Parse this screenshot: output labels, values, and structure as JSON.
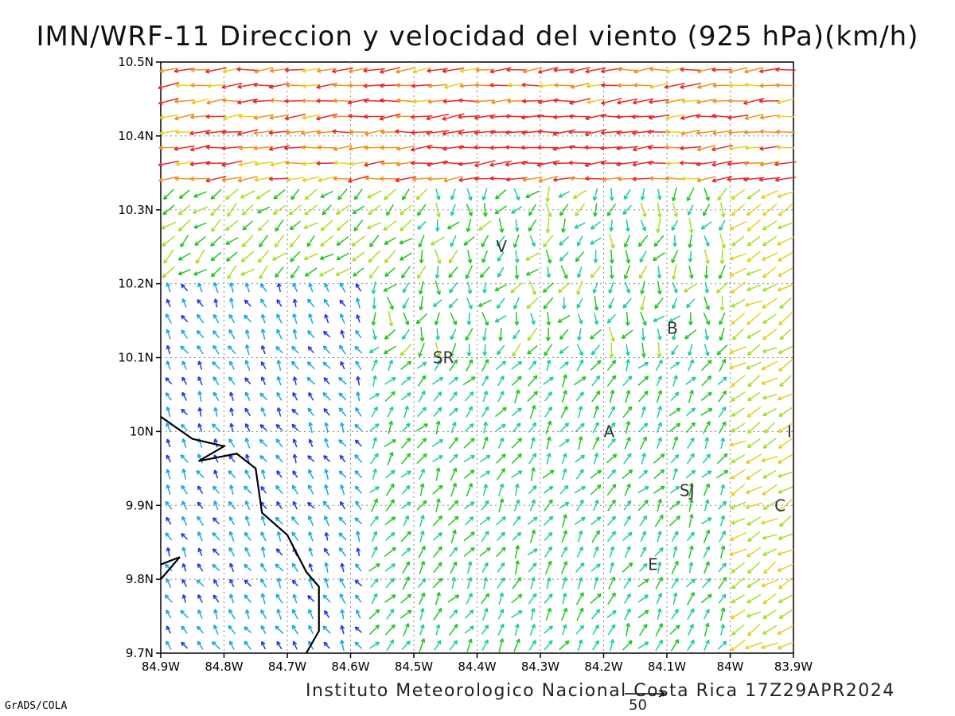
{
  "title": "IMN/WRF-11 Direccion y velocidad del viento (925 hPa)(km/h)",
  "credit": "Instituto Meteorologico Nacional Costa Rica 17Z29APR2024",
  "software": "GrADS/COLA",
  "reference_vector": {
    "label": "50",
    "speed_kmh": 50
  },
  "axes": {
    "lat_ticks": [
      "9.7N",
      "9.8N",
      "9.9N",
      "10N",
      "10.1N",
      "10.2N",
      "10.3N",
      "10.4N",
      "10.5N"
    ],
    "lon_ticks": [
      "84.9W",
      "84.8W",
      "84.7W",
      "84.6W",
      "84.5W",
      "84.4W",
      "84.3W",
      "84.2W",
      "84.1W",
      "84W",
      "83.9W"
    ],
    "lat_range": [
      9.7,
      10.5
    ],
    "lon_range": [
      -84.9,
      -83.9
    ],
    "grid": "dotted"
  },
  "station_labels": [
    {
      "text": "V",
      "lon": -84.37,
      "lat": 10.25
    },
    {
      "text": "B",
      "lon": -84.1,
      "lat": 10.14
    },
    {
      "text": "SR",
      "lon": -84.47,
      "lat": 10.1
    },
    {
      "text": "A",
      "lon": -84.2,
      "lat": 10.0
    },
    {
      "text": "I",
      "lon": -83.91,
      "lat": 10.0
    },
    {
      "text": "SJ",
      "lon": -84.08,
      "lat": 9.92
    },
    {
      "text": "C",
      "lon": -83.93,
      "lat": 9.9
    },
    {
      "text": "E",
      "lon": -84.13,
      "lat": 9.82
    }
  ],
  "coastline": [
    [
      -84.9,
      10.02
    ],
    [
      -84.85,
      9.99
    ],
    [
      -84.8,
      9.98
    ],
    [
      -84.84,
      9.96
    ],
    [
      -84.78,
      9.97
    ],
    [
      -84.75,
      9.95
    ],
    [
      -84.74,
      9.89
    ],
    [
      -84.7,
      9.86
    ],
    [
      -84.67,
      9.81
    ],
    [
      -84.65,
      9.79
    ],
    [
      -84.65,
      9.73
    ],
    [
      -84.67,
      9.7
    ]
  ],
  "coastline2": [
    [
      -84.9,
      9.8
    ],
    [
      -84.87,
      9.83
    ],
    [
      -84.9,
      9.82
    ]
  ],
  "wind_regions": [
    {
      "name": "north-band",
      "lat": [
        10.33,
        10.5
      ],
      "dir_deg": 265,
      "speed": "high",
      "color": "#f07820"
    },
    {
      "name": "north-core",
      "lat": [
        10.35,
        10.43
      ],
      "lon": [
        -84.5,
        -84.1
      ],
      "dir_deg": 260,
      "speed": "very-high",
      "color": "#e83030"
    },
    {
      "name": "west-coast",
      "lat": [
        9.7,
        10.2
      ],
      "lon": [
        -84.9,
        -84.55
      ],
      "dir_deg": 330,
      "speed": "low",
      "color": "#1a6cf0"
    },
    {
      "name": "central-valley",
      "lat": [
        9.7,
        10.1
      ],
      "lon": [
        -84.55,
        -84.0
      ],
      "dir_deg": 30,
      "speed": "moderate",
      "color": "#20c8a0"
    },
    {
      "name": "east",
      "lat": [
        9.7,
        10.3
      ],
      "lon": [
        -84.0,
        -83.9
      ],
      "dir_deg": 240,
      "speed": "high",
      "color": "#b8e030"
    }
  ],
  "colors": {
    "very_low": "#8a10d0",
    "low": "#1a3cf0",
    "low_mid": "#18a8e8",
    "mid": "#18d0a0",
    "mid_high": "#20c820",
    "high": "#a8e028",
    "very_high": "#e8d020",
    "extreme": "#f09020",
    "max": "#e82828"
  }
}
